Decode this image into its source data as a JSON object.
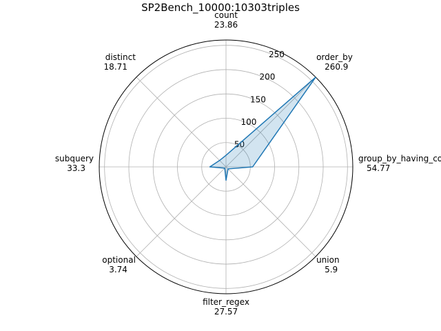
{
  "chart_data": {
    "type": "radar",
    "title": "SP2Bench_10000:10303triples",
    "categories": [
      {
        "name": "count",
        "value": 23.86,
        "label": "23.86"
      },
      {
        "name": "order_by",
        "value": 260.9,
        "label": "260.9"
      },
      {
        "name": "group_by_having_count_distinct",
        "value": 54.77,
        "label": "54.77"
      },
      {
        "name": "union",
        "value": 5.9,
        "label": "5.9"
      },
      {
        "name": "filter_regex",
        "value": 27.57,
        "label": "27.57"
      },
      {
        "name": "optional",
        "value": 3.74,
        "label": "3.74"
      },
      {
        "name": "subquery",
        "value": 33.3,
        "label": "33.3"
      },
      {
        "name": "distinct",
        "value": 18.71,
        "label": "18.71"
      }
    ],
    "radial_ticks": [
      50,
      100,
      150,
      200,
      250
    ],
    "rlim": [
      0,
      260.9
    ],
    "grid": true,
    "colors": {
      "line": "#1f77b4",
      "fill": "#1f77b4",
      "grid": "#b0b0b0"
    }
  }
}
